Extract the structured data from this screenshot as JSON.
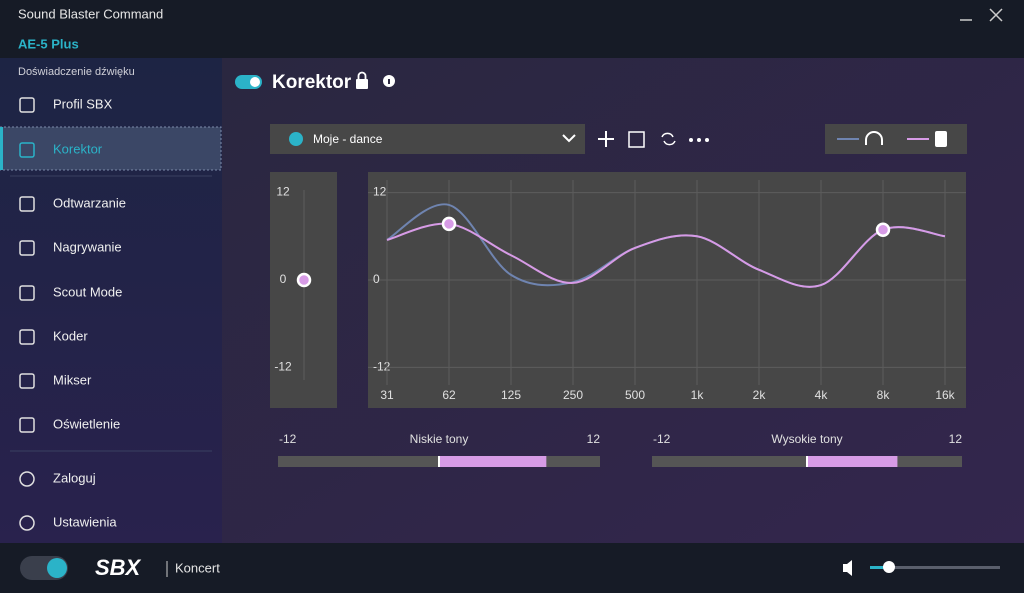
{
  "window": {
    "title": "Sound Blaster Command",
    "device": "AE-5 Plus"
  },
  "sidebar": {
    "section": "Doświadczenie dźwięku",
    "items": [
      "Profil SBX",
      "Korektor",
      "Odtwarzanie",
      "Nagrywanie",
      "Scout Mode",
      "Koder",
      "Mikser",
      "Oświetlenie"
    ],
    "active": 1,
    "bottom_items": [
      "Zaloguj",
      "Ustawienia"
    ]
  },
  "equalizer": {
    "title": "Korektor",
    "enabled": true,
    "preset": "Moje - dance",
    "preamp": {
      "ylim": [
        -14,
        14
      ],
      "yticks": [
        12,
        0,
        -12
      ],
      "value": 0,
      "color": "#d79be6"
    }
  },
  "chart_data": {
    "type": "line",
    "categories": [
      "31",
      "62",
      "125",
      "250",
      "500",
      "1k",
      "2k",
      "4k",
      "8k",
      "16k"
    ],
    "ylim": [
      -14,
      14
    ],
    "yticks": [
      12,
      0,
      -12
    ],
    "grid": true,
    "series": [
      {
        "color": "#6f84b0",
        "values": [
          5.5,
          10.3,
          0.7,
          -0.3,
          4.4,
          6,
          1.4,
          -0.7,
          6.9,
          6
        ]
      },
      {
        "color": "#d79be6",
        "values": [
          5.5,
          7.7,
          3.4,
          -0.4,
          4.4,
          6,
          1.4,
          -0.7,
          6.9,
          6
        ],
        "handles": [
          1,
          8
        ]
      }
    ]
  },
  "tone_controls": [
    {
      "label": "Niskie tony",
      "lim": [
        -12,
        12
      ],
      "value": 8
    },
    {
      "label": "Wysokie tony",
      "lim": [
        -12,
        12
      ],
      "value": 7
    }
  ],
  "footer": {
    "mode": "SBX",
    "profile": "Koncert"
  }
}
